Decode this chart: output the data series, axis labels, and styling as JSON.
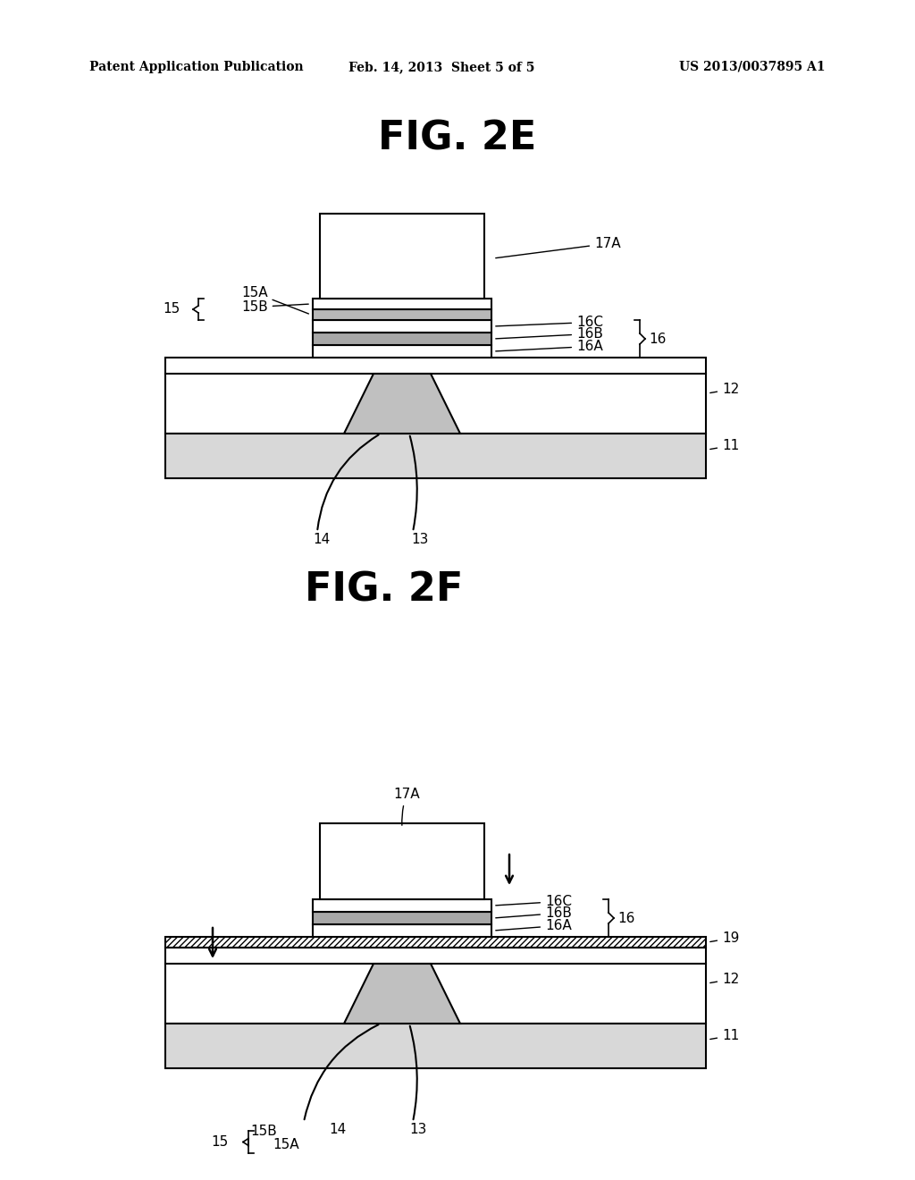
{
  "header_left": "Patent Application Publication",
  "header_center": "Feb. 14, 2013  Sheet 5 of 5",
  "header_right": "US 2013/0037895 A1",
  "fig2e_title": "FIG. 2E",
  "fig2f_title": "FIG. 2F",
  "bg_color": "#ffffff",
  "line_color": "#000000",
  "gray_fill": "#d0d0d0",
  "light_gray": "#e8e8e8",
  "hatch_color": "#888888"
}
